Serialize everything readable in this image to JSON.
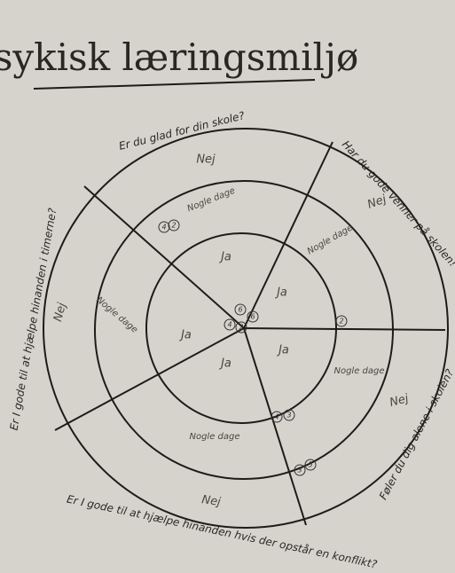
{
  "title": "Psykisk læringsmiljø",
  "sections": [
    {
      "question": "Er du glad for din skole?",
      "outer": "Nej",
      "middle": "Nogle dage",
      "inner": "Ja"
    },
    {
      "question": "Har du gode venner på skolen!",
      "outer": "Nej",
      "middle": "Nogle dage",
      "inner": "Ja"
    },
    {
      "question": "Føler du dig alene i skolen?",
      "outer": "Nej",
      "middle": "Nogle dage",
      "inner": "Ja"
    },
    {
      "question": "Er I gode til at hjælpe hinanden hvis der opstår en konflikt?",
      "outer": "Nej",
      "middle": "Nogle dage",
      "inner": "Ja"
    },
    {
      "question": "Er I gode til at hjælpe hinanden i timerne?",
      "outer": "Nej",
      "middle": "Nogle dage",
      "inner": "Ja"
    }
  ],
  "markers": [
    "4",
    "2",
    "6",
    "6",
    "4",
    "2",
    "2",
    "4",
    "3",
    "3",
    "5"
  ]
}
